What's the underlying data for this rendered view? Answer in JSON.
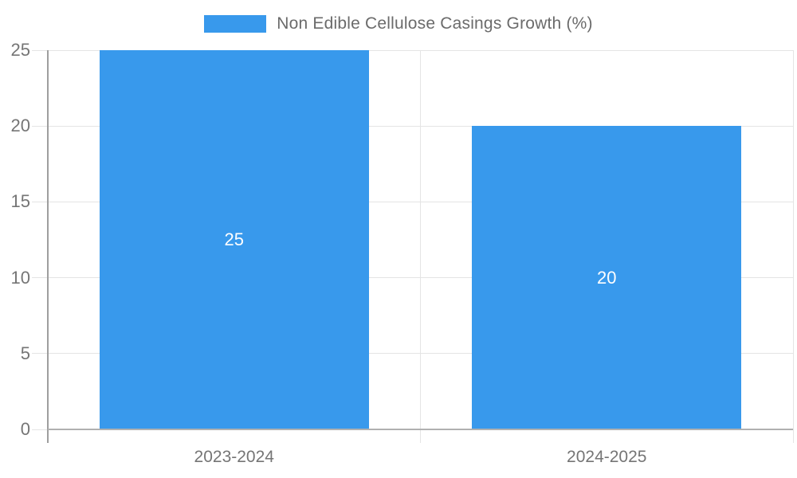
{
  "legend": {
    "label": "Non Edible Cellulose Casings Growth (%)"
  },
  "colors": {
    "bar": "#3899ec",
    "bar_label": "#ffffff",
    "grid_line": "#e4e4e4",
    "axis_line": "#9e9e9e",
    "baseline": "#b0b0b0",
    "tick_text": "#757575",
    "legend_text": "#6b6b6b",
    "background": "#ffffff"
  },
  "chart_data": {
    "type": "bar",
    "title": "",
    "xlabel": "",
    "ylabel": "",
    "categories": [
      "2023-2024",
      "2024-2025"
    ],
    "series": [
      {
        "name": "Non Edible Cellulose Casings Growth (%)",
        "values": [
          25,
          20
        ]
      }
    ],
    "data_labels": [
      "25",
      "20"
    ],
    "ylim": [
      0,
      25
    ],
    "yticks": [
      0,
      5,
      10,
      15,
      20,
      25
    ],
    "grid": true,
    "legend_position": "top-center"
  }
}
